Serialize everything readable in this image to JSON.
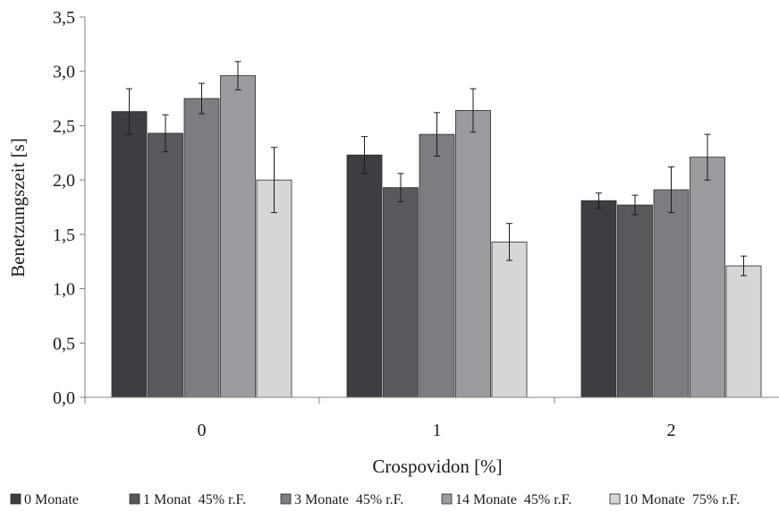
{
  "chart_data": {
    "type": "bar",
    "title": "",
    "xlabel": "Crospovidon [%]",
    "ylabel": "Benetzungszeit [s]",
    "ylim": [
      0,
      3.5
    ],
    "ytick_step": 0.5,
    "ytick_labels": [
      "0,0",
      "0,5",
      "1,0",
      "1,5",
      "2,0",
      "2,5",
      "3,0",
      "3,5"
    ],
    "categories": [
      "0",
      "1",
      "2"
    ],
    "grid": false,
    "legend_position": "bottom",
    "series": [
      {
        "name": "0 Monate",
        "color": "#3d3e42",
        "values": [
          2.63,
          2.23,
          1.81
        ],
        "errors": [
          0.21,
          0.17,
          0.07
        ]
      },
      {
        "name": "1 Monat  45% r.F.",
        "color": "#58595d",
        "values": [
          2.43,
          1.93,
          1.77
        ],
        "errors": [
          0.17,
          0.13,
          0.09
        ]
      },
      {
        "name": "3 Monate  45% r.F.",
        "color": "#7c7d81",
        "values": [
          2.75,
          2.42,
          1.91
        ],
        "errors": [
          0.14,
          0.2,
          0.21
        ]
      },
      {
        "name": "14 Monate  45% r.F.",
        "color": "#9a9b9f",
        "values": [
          2.96,
          2.64,
          2.21
        ],
        "errors": [
          0.13,
          0.2,
          0.21
        ]
      },
      {
        "name": "10 Monate  75% r.F.",
        "color": "#d5d6d8",
        "values": [
          2.0,
          1.43,
          1.21
        ],
        "errors": [
          0.3,
          0.17,
          0.09
        ]
      }
    ]
  }
}
